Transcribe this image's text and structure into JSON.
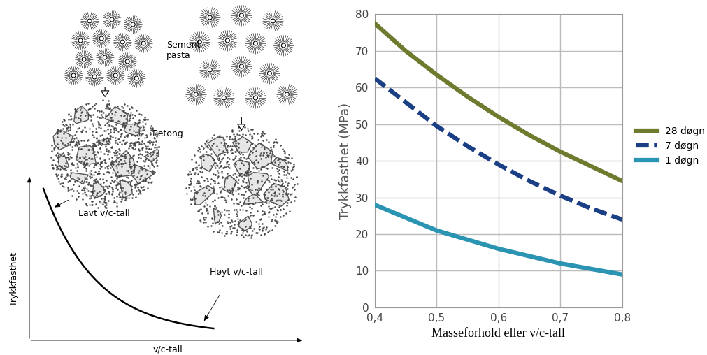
{
  "diagram": {
    "cement_paste_label": "Sement-\npasta",
    "concrete_label": "Betong",
    "low_label": "Lavt v/c-tall",
    "high_label": "Høyt v/c-tall",
    "y_label": "Trykkfasthet",
    "x_label": "v/c-tall"
  },
  "chart_data": {
    "type": "line",
    "x_label": "Masseforhold eller v/c-tall",
    "y_label": "Trykkfasthet (MPa)",
    "x": [
      0.4,
      0.45,
      0.5,
      0.55,
      0.6,
      0.65,
      0.7,
      0.75,
      0.8
    ],
    "series": [
      {
        "name": "28 døgn",
        "color": "#6e7b2f",
        "line_style": "solid",
        "values": [
          77.5,
          70,
          63.5,
          57.5,
          52,
          47,
          42.5,
          38.5,
          34.5
        ]
      },
      {
        "name": "7 døgn",
        "color": "#1b3f85",
        "line_style": "dashed",
        "values": [
          62.5,
          56,
          49.5,
          44,
          39,
          34.5,
          30.5,
          27,
          24
        ]
      },
      {
        "name": "1 døgn",
        "color": "#2b94b3",
        "line_style": "solid",
        "values": [
          28,
          24.5,
          21,
          18.5,
          16,
          14,
          12,
          10.5,
          9
        ]
      }
    ],
    "xlim": [
      0.4,
      0.8
    ],
    "xticks": [
      {
        "value": 0.4,
        "label": "0,4"
      },
      {
        "value": 0.5,
        "label": "0,5"
      },
      {
        "value": 0.6,
        "label": "0,6"
      },
      {
        "value": 0.7,
        "label": "0,7"
      },
      {
        "value": 0.8,
        "label": "0,8"
      }
    ],
    "ylim": [
      0,
      80
    ],
    "yticks": [
      0,
      10,
      20,
      30,
      40,
      50,
      60,
      70,
      80
    ],
    "grid": true,
    "legend": "center left"
  }
}
